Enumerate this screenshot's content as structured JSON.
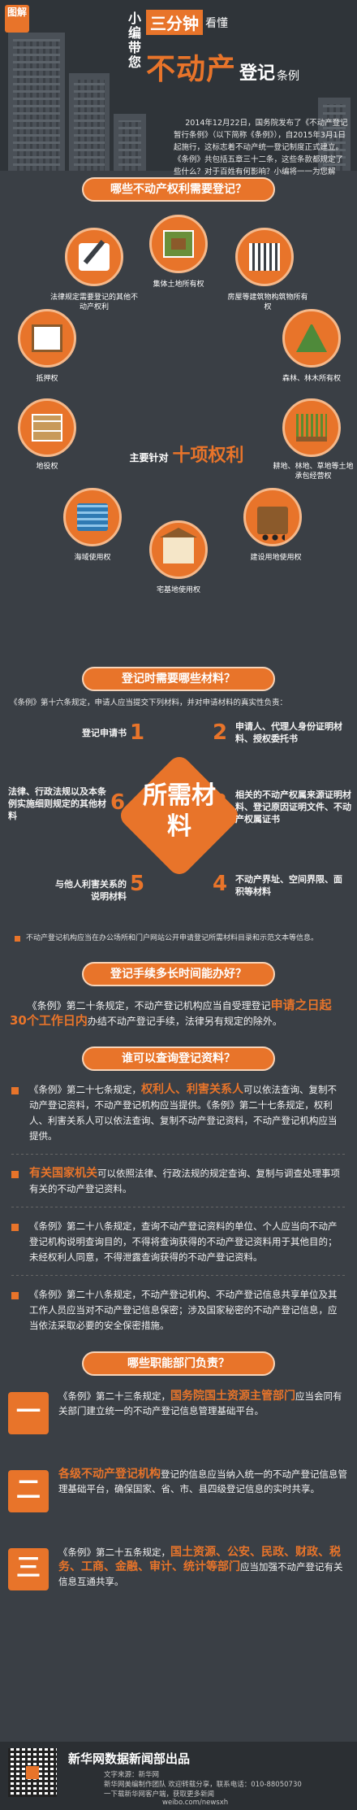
{
  "header": {
    "badge": "图解",
    "xiaobian": "小编带您",
    "highlight": "三分钟",
    "title_small": "看懂",
    "title_big": "不动产",
    "title_mid": "登记",
    "title_tail": "条例",
    "intro": "2014年12月22日，国务院发布了《不动产登记暂行条例》（以下简称《条例》），自2015年3月1日起施行，这标志着不动产统一登记制度正式建立。《条例》共包括五章三十二条，这些条款都规定了些什么？对于百姓有何影响？小编将一一为您解析："
  },
  "section1": {
    "title": "哪些不动产权利需要登记？",
    "center_a": "主要针对",
    "center_b": "十项权利",
    "rights": [
      "法律规定需要登记的其他不动产权利",
      "集体土地所有权",
      "房屋等建筑物构筑物所有权",
      "森林、林木所有权",
      "耕地、林地、草地等土地承包经营权",
      "建设用地使用权",
      "宅基地使用权",
      "海域使用权",
      "地役权",
      "抵押权"
    ]
  },
  "section2": {
    "title": "登记时需要哪些材料？",
    "intro": "《条例》第十六条规定，申请人应当提交下列材料，并对申请材料的真实性负责：",
    "center": "所需材料",
    "items": [
      {
        "n": "1",
        "t": "登记申请书"
      },
      {
        "n": "2",
        "t": "申请人、代理人身份证明材料、授权委托书"
      },
      {
        "n": "3",
        "t": "相关的不动产权属来源证明材料、登记原因证明文件、不动产权属证书"
      },
      {
        "n": "4",
        "t": "不动产界址、空间界限、面积等材料"
      },
      {
        "n": "5",
        "t": "与他人利害关系的说明材料"
      },
      {
        "n": "6",
        "t": "法律、行政法规以及本条例实施细则规定的其他材料"
      }
    ],
    "note": "不动产登记机构应当在办公场所和门户网站公开申请登记所需材料目录和示范文本等信息。"
  },
  "section3": {
    "title": "登记手续多长时间能办好？",
    "p1": "《条例》第二十条规定，不动产登记机构应当自受理登记",
    "p_hl": "申请之日起30个工作日内",
    "p2": "办结不动产登记手续，法律另有规定的除外。"
  },
  "section4": {
    "title": "谁可以查询登记资料？",
    "q1a": "《条例》第二十七条规定，",
    "q1hl": "权利人、利害关系人",
    "q1b": "可以依法查询、复制不动产登记资料，不动产登记机构应当提供。《条例》第二十七条规定，权利人、利害关系人可以依法查询、复制不动产登记资料，不动产登记机构应当提供。",
    "q2hl": "有关国家机关",
    "q2b": "可以依照法律、行政法规的规定查询、复制与调查处理事项有关的不动产登记资料。",
    "q3": "《条例》第二十八条规定，查询不动产登记资料的单位、个人应当向不动产登记机构说明查询目的，不得将查询获得的不动产登记资料用于其他目的；未经权利人同意，不得泄露查询获得的不动产登记资料。",
    "q4": "《条例》第二十八条规定，不动产登记机构、不动产登记信息共享单位及其工作人员应当对不动产登记信息保密；涉及国家秘密的不动产登记信息，应当依法采取必要的安全保密措施。"
  },
  "section5": {
    "title": "哪些职能部门负责？",
    "d1_num": "一",
    "d1a": "《条例》第二十三条规定，",
    "d1hl": "国务院国土资源主管部门",
    "d1b": "应当会同有关部门建立统一的不动产登记信息管理基础平台。",
    "d2_num": "二",
    "d2hl": "各级不动产登记机构",
    "d2b": "登记的信息应当纳入统一的不动产登记信息管理基础平台，确保国家、省、市、县四级登记信息的实时共享。",
    "d3_num": "三",
    "d3a": "《条例》第二十五条规定，",
    "d3hl": "国土资源、公安、民政、财政、税务、工商、金融、审计、统计等部门",
    "d3b": "应当加强不动产登记有关信息互通共享。"
  },
  "footer": {
    "title": "新华网数据新闻部出品",
    "line1": "文字来源：新华网",
    "line2": "新华网美编制作团队 欢迎转载分享，联系电话：010-88050730",
    "line3": "一下载新华网客户端，获取更多新闻",
    "weibo": "weibo.com/newsxh"
  },
  "colors": {
    "accent": "#e8742a",
    "bg": "#3a3f45"
  }
}
